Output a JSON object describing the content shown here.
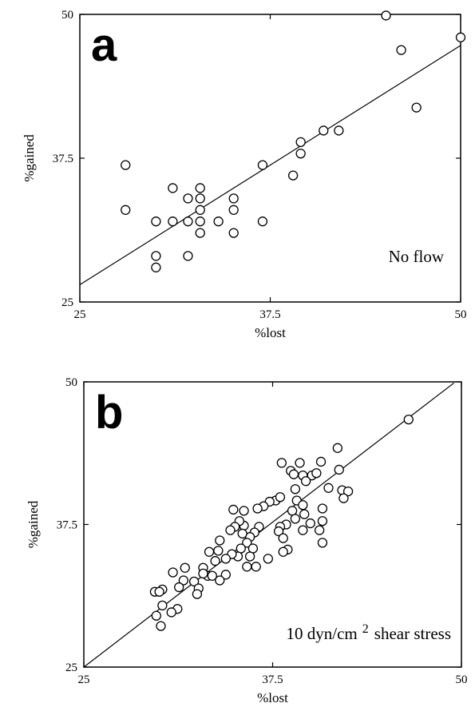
{
  "chart_data": [
    {
      "type": "scatter",
      "panel_label": "a",
      "annotation": [
        "No flow"
      ],
      "x_label": "%lost",
      "y_label": "%gained",
      "xlim": [
        25,
        50
      ],
      "ylim": [
        25,
        50
      ],
      "xticks": [
        25,
        37.5,
        50
      ],
      "yticks": [
        25,
        37.5,
        50
      ],
      "color": "#000000",
      "x": [
        45.1,
        46.1,
        50.0,
        47.1,
        41.0,
        42.0,
        39.5,
        39.5,
        37.0,
        39.0,
        28.0,
        28.0,
        31.1,
        32.1,
        32.9,
        32.9,
        32.9,
        32.9,
        32.9,
        35.1,
        35.1,
        35.1,
        34.1,
        32.1,
        31.1,
        30.0,
        37.0,
        30.0,
        30.0,
        32.1
      ],
      "values": [
        49.9,
        46.9,
        48.0,
        41.9,
        39.9,
        39.9,
        38.9,
        37.9,
        36.9,
        36.0,
        36.9,
        33.0,
        34.9,
        34.0,
        34.9,
        34.0,
        33.0,
        32.0,
        31.0,
        34.0,
        33.0,
        31.0,
        32.0,
        32.0,
        32.0,
        32.0,
        32.0,
        29.0,
        28.0,
        29.0
      ],
      "fit_line": {
        "x": [
          25,
          50
        ],
        "y": [
          26.5,
          47.3
        ]
      }
    },
    {
      "type": "scatter",
      "panel_label": "b",
      "annotation": [
        "10 dyn/cm",
        "2",
        "shear stress"
      ],
      "x_label": "%lost",
      "y_label": "%gained",
      "xlim": [
        25,
        50
      ],
      "ylim": [
        25,
        50
      ],
      "xticks": [
        25,
        37.5,
        50
      ],
      "yticks": [
        25,
        37.5,
        50
      ],
      "color": "#000000",
      "x": [
        46.5,
        41.8,
        41.9,
        40.7,
        38.1,
        39.3,
        38.7,
        38.9,
        39.5,
        40.1,
        40.4,
        42.1,
        42.5,
        42.2,
        41.2,
        39.7,
        39.0,
        39.1,
        37.7,
        38.0,
        37.3,
        36.9,
        36.5,
        35.6,
        34.9,
        38.8,
        39.5,
        39.6,
        40.8,
        40.8,
        40.0,
        39.5,
        39.0,
        38.4,
        38.0,
        37.9,
        38.2,
        38.5,
        38.2,
        40.6,
        40.8,
        36.6,
        36.3,
        36.0,
        35.6,
        35.3,
        35.0,
        34.7,
        35.5,
        35.8,
        36.2,
        35.4,
        36.0,
        35.2,
        35.8,
        34.8,
        34.4,
        34.0,
        33.9,
        33.7,
        33.3,
        33.2,
        34.4,
        34.0,
        33.5,
        32.9,
        32.9,
        31.7,
        32.3,
        31.6,
        32.6,
        32.5,
        30.9,
        31.3,
        30.2,
        29.7,
        30.0,
        31.2,
        30.8,
        30.2,
        29.8,
        30.1,
        36.4,
        37.2
      ],
      "values": [
        46.7,
        44.2,
        42.3,
        43.0,
        42.9,
        42.9,
        42.2,
        41.9,
        41.8,
        41.8,
        42.0,
        40.5,
        40.4,
        39.8,
        40.7,
        41.3,
        40.6,
        39.6,
        39.6,
        39.9,
        39.5,
        39.1,
        38.9,
        38.7,
        38.8,
        38.7,
        39.2,
        38.4,
        38.9,
        37.8,
        37.6,
        37.0,
        38.0,
        37.5,
        37.3,
        36.9,
        36.3,
        35.3,
        35.1,
        37.0,
        35.9,
        37.3,
        36.8,
        36.4,
        37.4,
        37.8,
        37.3,
        37.0,
        36.7,
        35.9,
        35.4,
        35.4,
        34.7,
        34.7,
        33.8,
        34.9,
        34.5,
        36.1,
        35.2,
        34.3,
        35.1,
        33.0,
        33.1,
        32.6,
        33.0,
        33.7,
        33.2,
        33.7,
        32.5,
        32.6,
        31.9,
        31.4,
        33.3,
        32.0,
        31.8,
        31.6,
        31.6,
        30.1,
        29.8,
        30.4,
        29.5,
        28.6,
        33.8,
        34.5
      ],
      "fit_line": {
        "x": [
          25,
          49.5
        ],
        "y": [
          25,
          49.9
        ]
      }
    }
  ]
}
